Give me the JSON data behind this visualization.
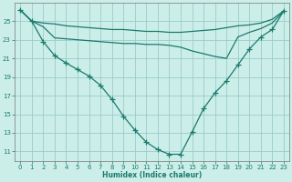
{
  "xlabel": "Humidex (Indice chaleur)",
  "bg_color": "#cceee8",
  "grid_color": "#99cccc",
  "line_color": "#1a7a6e",
  "xlim": [
    -0.5,
    23.5
  ],
  "ylim": [
    10.0,
    27.0
  ],
  "yticks": [
    11,
    13,
    15,
    17,
    19,
    21,
    23,
    25
  ],
  "xticks": [
    0,
    1,
    2,
    3,
    4,
    5,
    6,
    7,
    8,
    9,
    10,
    11,
    12,
    13,
    14,
    15,
    16,
    17,
    18,
    19,
    20,
    21,
    22,
    23
  ],
  "line1_x": [
    0,
    1,
    2,
    3,
    4,
    5,
    6,
    7,
    8,
    9,
    10,
    11,
    12,
    13,
    14,
    15,
    16,
    17,
    18,
    19,
    20,
    21,
    22,
    23
  ],
  "line1_y": [
    26.2,
    25.0,
    24.8,
    24.7,
    24.5,
    24.4,
    24.3,
    24.2,
    24.1,
    24.1,
    24.0,
    23.9,
    23.9,
    23.8,
    23.8,
    23.9,
    24.0,
    24.1,
    24.3,
    24.5,
    24.6,
    24.8,
    25.2,
    26.1
  ],
  "line2_x": [
    0,
    1,
    2,
    3,
    4,
    5,
    6,
    7,
    8,
    9,
    10,
    11,
    12,
    13,
    14,
    15,
    16,
    17,
    18,
    19,
    20,
    21,
    22,
    23
  ],
  "line2_y": [
    26.2,
    25.0,
    24.4,
    23.2,
    23.1,
    23.0,
    22.9,
    22.8,
    22.7,
    22.6,
    22.6,
    22.5,
    22.5,
    22.4,
    22.2,
    21.8,
    21.5,
    21.2,
    21.0,
    23.3,
    23.8,
    24.2,
    24.8,
    26.1
  ],
  "line3_x": [
    0,
    1,
    2,
    3,
    4,
    5,
    6,
    7,
    8,
    9,
    10,
    11,
    12,
    13,
    14,
    15,
    16,
    17,
    18,
    19,
    20,
    21,
    22,
    23
  ],
  "line3_y": [
    26.2,
    25.0,
    22.8,
    21.3,
    20.5,
    19.8,
    19.1,
    18.1,
    16.6,
    14.8,
    13.3,
    12.0,
    11.2,
    10.7,
    10.7,
    13.1,
    15.6,
    17.3,
    18.6,
    20.3,
    22.0,
    23.3,
    24.1,
    26.1
  ]
}
